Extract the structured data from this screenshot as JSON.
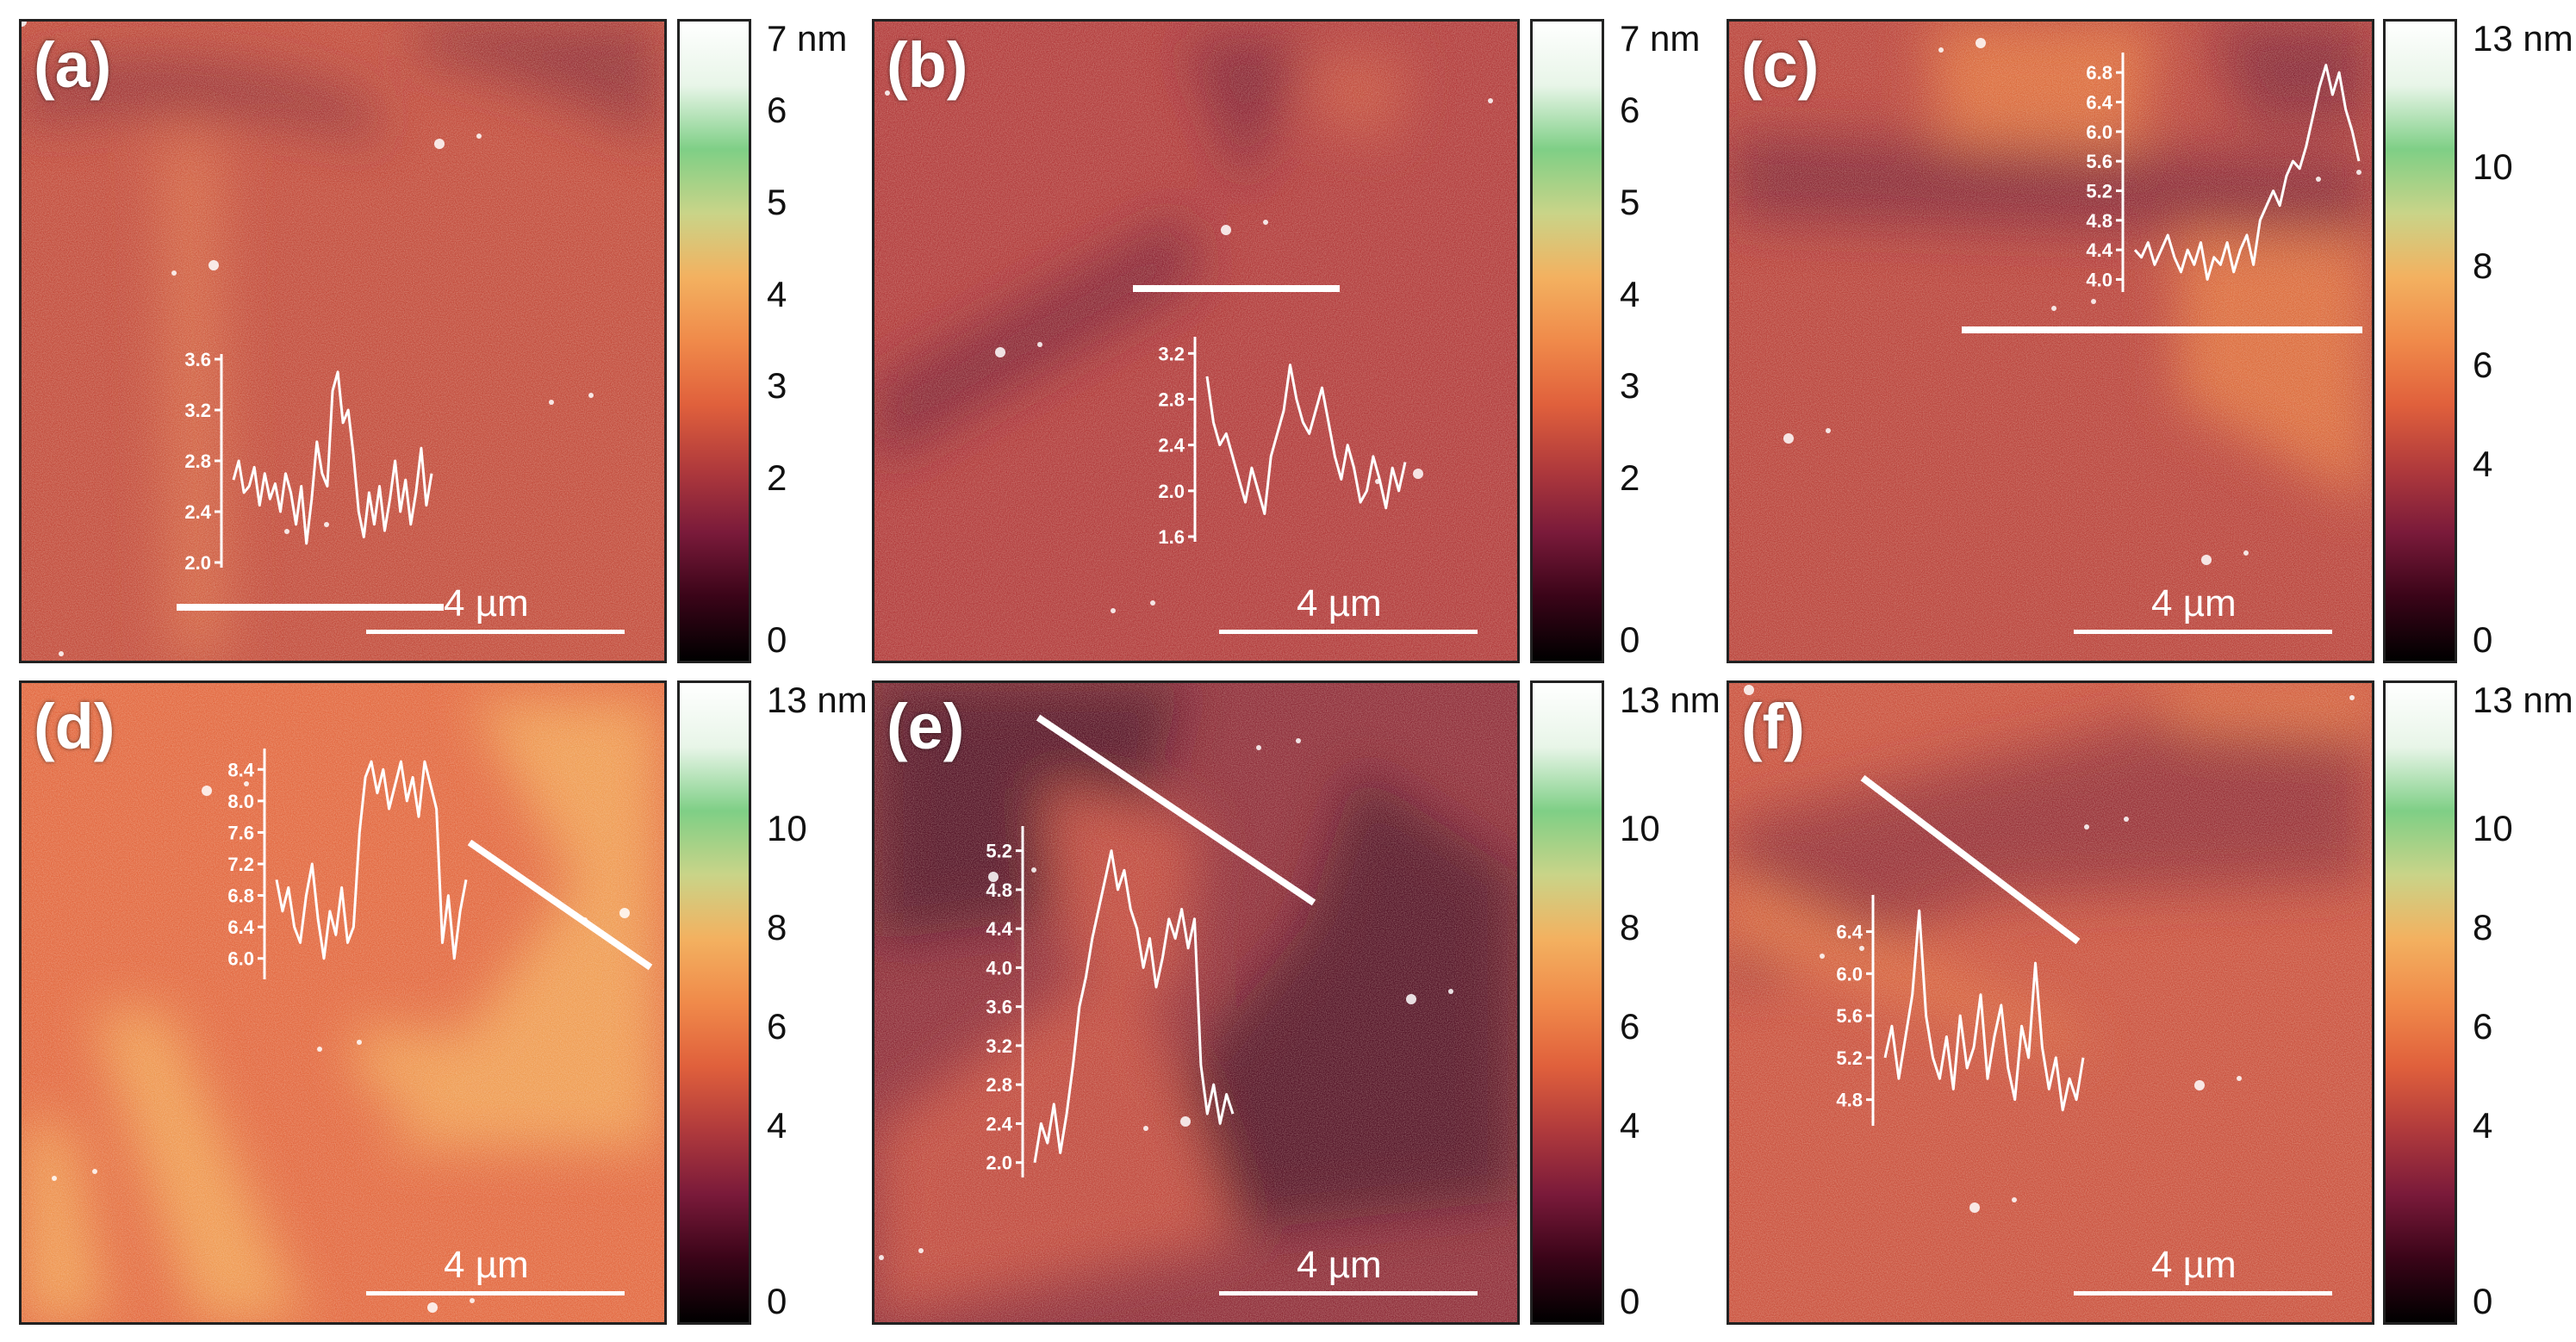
{
  "figure": {
    "colors": {
      "cmap": [
        "#000000",
        "#3a0418",
        "#7a1a3a",
        "#b03a3c",
        "#e0603c",
        "#f08a4a",
        "#f3b160",
        "#c9d488",
        "#7fcf86",
        "#e8f5e8",
        "#ffffff"
      ],
      "profile": "#ffffff"
    },
    "panels": [
      {
        "id": "a",
        "label": "(a)",
        "scale": "4 µm",
        "bg": {
          "base": "#c14a3b",
          "dark": "#8a2a35",
          "light": "#d86a46"
        },
        "colorbar": {
          "ticks": [
            "7 nm",
            "6",
            "5",
            "4",
            "3",
            "2",
            "0"
          ],
          "values": [
            7,
            6,
            5,
            4,
            3,
            2,
            0
          ],
          "max": 7
        },
        "profile": {
          "ticks": [
            "3.6",
            "3.2",
            "2.8",
            "2.4",
            "2.0"
          ],
          "tick_values": [
            3.6,
            3.2,
            2.8,
            2.4,
            2.0
          ],
          "ymin": 2.0,
          "ymax": 3.6,
          "values": [
            2.65,
            2.8,
            2.55,
            2.6,
            2.75,
            2.45,
            2.7,
            2.5,
            2.62,
            2.4,
            2.7,
            2.55,
            2.3,
            2.6,
            2.15,
            2.5,
            2.95,
            2.7,
            2.6,
            3.35,
            3.5,
            3.1,
            3.2,
            2.85,
            2.4,
            2.2,
            2.55,
            2.3,
            2.6,
            2.25,
            2.5,
            2.8,
            2.4,
            2.65,
            2.3,
            2.55,
            2.9,
            2.45,
            2.7
          ]
        }
      },
      {
        "id": "b",
        "label": "(b)",
        "scale": "4 µm",
        "bg": {
          "base": "#b0393a",
          "dark": "#7a1f33",
          "light": "#c9553f"
        },
        "colorbar": {
          "ticks": [
            "7 nm",
            "6",
            "5",
            "4",
            "3",
            "2",
            "0"
          ],
          "values": [
            7,
            6,
            5,
            4,
            3,
            2,
            0
          ],
          "max": 7
        },
        "profile": {
          "ticks": [
            "3.2",
            "2.8",
            "2.4",
            "2.0",
            "1.6"
          ],
          "tick_values": [
            3.2,
            2.8,
            2.4,
            2.0,
            1.6
          ],
          "ymin": 1.6,
          "ymax": 3.3,
          "values": [
            3.0,
            2.6,
            2.4,
            2.5,
            2.3,
            2.1,
            1.9,
            2.2,
            2.0,
            1.8,
            2.3,
            2.5,
            2.7,
            3.1,
            2.8,
            2.6,
            2.5,
            2.7,
            2.9,
            2.6,
            2.3,
            2.1,
            2.4,
            2.2,
            1.9,
            2.0,
            2.3,
            2.1,
            1.85,
            2.2,
            2.0,
            2.25
          ]
        }
      },
      {
        "id": "c",
        "label": "(c)",
        "scale": "4 µm",
        "bg": {
          "base": "#b8413a",
          "dark": "#7e2034",
          "light": "#e2733e"
        },
        "colorbar": {
          "ticks": [
            "13 nm",
            "10",
            "8",
            "6",
            "4",
            "0"
          ],
          "values": [
            13,
            10,
            8,
            6,
            4,
            0
          ],
          "max": 13
        },
        "profile": {
          "ticks": [
            "6.8",
            "6.4",
            "6.0",
            "5.6",
            "5.2",
            "4.8",
            "4.4",
            "4.0"
          ],
          "tick_values": [
            6.8,
            6.4,
            6.0,
            5.6,
            5.2,
            4.8,
            4.4,
            4.0
          ],
          "ymin": 3.9,
          "ymax": 7.0,
          "values": [
            4.4,
            4.3,
            4.5,
            4.2,
            4.4,
            4.6,
            4.3,
            4.1,
            4.4,
            4.2,
            4.5,
            4.0,
            4.3,
            4.2,
            4.5,
            4.1,
            4.4,
            4.6,
            4.2,
            4.8,
            5.0,
            5.2,
            5.0,
            5.4,
            5.6,
            5.5,
            5.8,
            6.2,
            6.6,
            6.9,
            6.5,
            6.8,
            6.3,
            6.0,
            5.6
          ]
        }
      },
      {
        "id": "d",
        "label": "(d)",
        "scale": "4 µm",
        "bg": {
          "base": "#e2673f",
          "dark": "#c24a3a",
          "light": "#f2a657"
        },
        "colorbar": {
          "ticks": [
            "13 nm",
            "10",
            "8",
            "6",
            "4",
            "0"
          ],
          "values": [
            13,
            10,
            8,
            6,
            4,
            0
          ],
          "max": 13
        },
        "profile": {
          "ticks": [
            "8.4",
            "8.0",
            "7.6",
            "7.2",
            "6.8",
            "6.4",
            "6.0"
          ],
          "tick_values": [
            8.4,
            8.0,
            7.6,
            7.2,
            6.8,
            6.4,
            6.0
          ],
          "ymin": 5.8,
          "ymax": 8.6,
          "values": [
            7.0,
            6.6,
            6.9,
            6.4,
            6.2,
            6.8,
            7.2,
            6.5,
            6.0,
            6.6,
            6.3,
            6.9,
            6.2,
            6.4,
            7.6,
            8.3,
            8.5,
            8.1,
            8.4,
            7.9,
            8.2,
            8.5,
            8.0,
            8.3,
            7.8,
            8.5,
            8.2,
            7.9,
            6.2,
            6.8,
            6.0,
            6.6,
            7.0
          ]
        }
      },
      {
        "id": "e",
        "label": "(e)",
        "scale": "4 µm",
        "bg": {
          "base": "#8c2a37",
          "dark": "#4a0c22",
          "light": "#c94e3d"
        },
        "colorbar": {
          "ticks": [
            "13 nm",
            "10",
            "8",
            "6",
            "4",
            "0"
          ],
          "values": [
            13,
            10,
            8,
            6,
            4,
            0
          ],
          "max": 13
        },
        "profile": {
          "ticks": [
            "5.2",
            "4.8",
            "4.4",
            "4.0",
            "3.6",
            "3.2",
            "2.8",
            "2.4",
            "2.0"
          ],
          "tick_values": [
            5.2,
            4.8,
            4.4,
            4.0,
            3.6,
            3.2,
            2.8,
            2.4,
            2.0
          ],
          "ymin": 1.9,
          "ymax": 5.4,
          "values": [
            2.0,
            2.4,
            2.2,
            2.6,
            2.1,
            2.5,
            3.0,
            3.6,
            3.9,
            4.3,
            4.6,
            4.9,
            5.2,
            4.8,
            5.0,
            4.6,
            4.4,
            4.0,
            4.3,
            3.8,
            4.1,
            4.5,
            4.3,
            4.6,
            4.2,
            4.5,
            3.0,
            2.5,
            2.8,
            2.4,
            2.7,
            2.5
          ]
        }
      },
      {
        "id": "f",
        "label": "(f)",
        "scale": "4 µm",
        "bg": {
          "base": "#c9503d",
          "dark": "#8e2b36",
          "light": "#e0703f"
        },
        "colorbar": {
          "ticks": [
            "13 nm",
            "10",
            "8",
            "6",
            "4",
            "0"
          ],
          "values": [
            13,
            10,
            8,
            6,
            4,
            0
          ],
          "max": 13
        },
        "profile": {
          "ticks": [
            "6.4",
            "6.0",
            "5.6",
            "5.2",
            "4.8"
          ],
          "tick_values": [
            6.4,
            6.0,
            5.6,
            5.2,
            4.8
          ],
          "ymin": 4.6,
          "ymax": 6.7,
          "values": [
            5.2,
            5.5,
            5.0,
            5.4,
            5.8,
            6.6,
            5.6,
            5.2,
            5.0,
            5.4,
            4.9,
            5.6,
            5.1,
            5.3,
            5.8,
            5.0,
            5.4,
            5.7,
            5.1,
            4.8,
            5.5,
            5.2,
            6.1,
            5.3,
            4.9,
            5.2,
            4.7,
            5.0,
            4.8,
            5.2
          ]
        }
      }
    ]
  }
}
